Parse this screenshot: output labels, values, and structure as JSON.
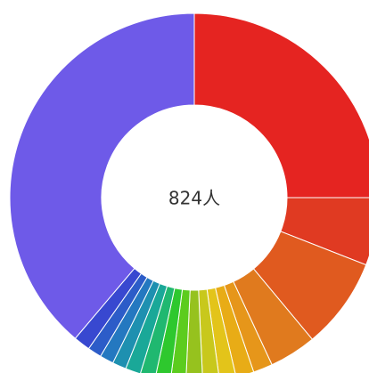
{
  "chart_data": {
    "type": "donut",
    "center_label": "824人",
    "categories": [
      null,
      null,
      null,
      null,
      null,
      null,
      null,
      null,
      null,
      null,
      null,
      null,
      null,
      null,
      null,
      null,
      null,
      null
    ],
    "values": [
      206,
      49,
      66,
      34,
      14,
      13,
      12,
      12,
      12,
      11,
      11,
      11,
      11,
      10,
      10,
      10,
      12,
      320
    ],
    "colors": [
      "#e52421",
      "#e03a22",
      "#e05a1f",
      "#e07a1e",
      "#e6961a",
      "#e8ac16",
      "#e3c41a",
      "#c8c81c",
      "#96c21e",
      "#5ccc1e",
      "#2ec82e",
      "#20b870",
      "#1aa898",
      "#1e90b0",
      "#2478c0",
      "#2c5cc8",
      "#3848d0",
      "#6e5ae8"
    ]
  }
}
